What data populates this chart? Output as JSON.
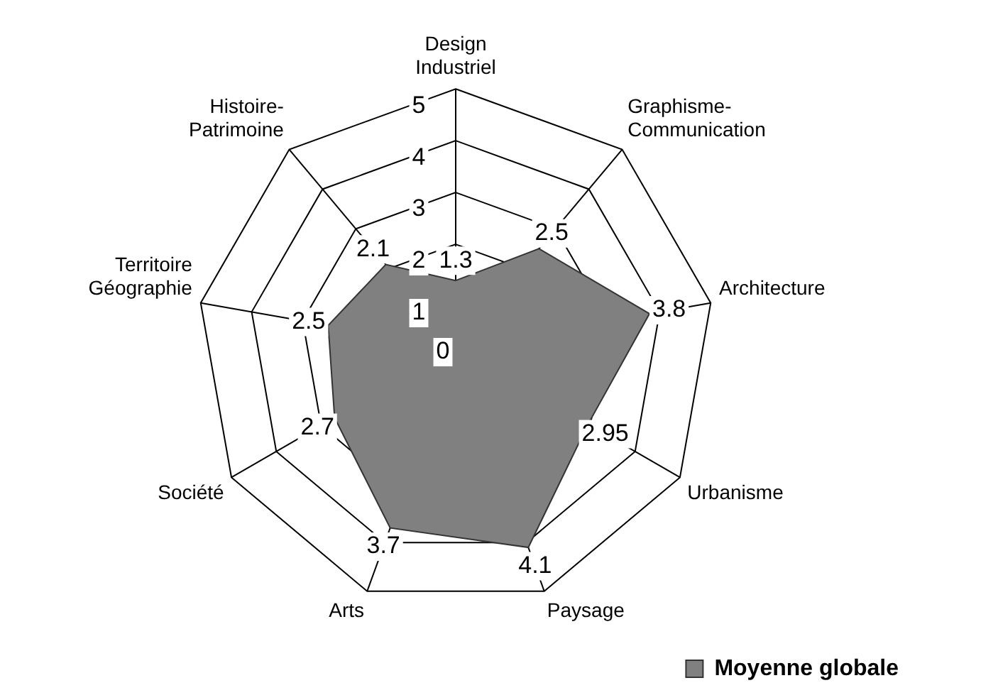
{
  "chart_data": {
    "type": "radar",
    "categories": [
      "Design Industriel",
      "Graphisme-Communication",
      "Architecture",
      "Urbanisme",
      "Paysage",
      "Arts",
      "Société",
      "Territoire Géographie",
      "Histoire-Patrimoine"
    ],
    "series": [
      {
        "name": "Moyenne globale",
        "color": "#808080",
        "values": [
          1.3,
          2.5,
          3.8,
          2.95,
          4.1,
          3.7,
          2.7,
          2.5,
          2.1
        ]
      }
    ],
    "ylim": [
      0,
      5
    ],
    "yticks": [
      0,
      1,
      2,
      3,
      4,
      5
    ],
    "grid": true,
    "legend": "bottom right",
    "data_labels": true
  }
}
